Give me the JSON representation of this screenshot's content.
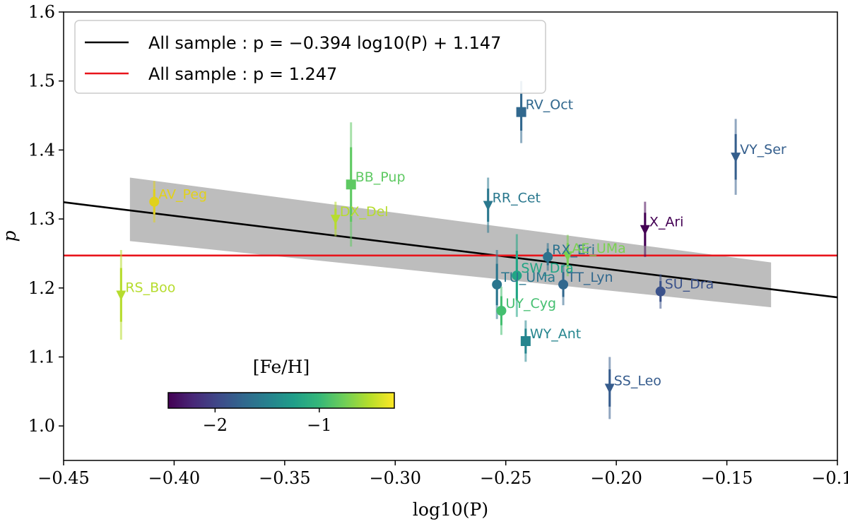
{
  "chart_data": {
    "type": "scatter",
    "xlabel": "log10(P)",
    "ylabel": "p",
    "xlim": [
      -0.45,
      -0.1
    ],
    "ylim": [
      0.95,
      1.6
    ],
    "xticks": [
      -0.45,
      -0.4,
      -0.35,
      -0.3,
      -0.25,
      -0.2,
      -0.15,
      -0.1
    ],
    "xtick_labels": [
      "−0.45",
      "−0.40",
      "−0.35",
      "−0.30",
      "−0.25",
      "−0.20",
      "−0.15",
      "−0.10"
    ],
    "yticks": [
      1.0,
      1.1,
      1.2,
      1.3,
      1.4,
      1.5,
      1.6
    ],
    "ytick_labels": [
      "1.0",
      "1.1",
      "1.2",
      "1.3",
      "1.4",
      "1.5",
      "1.6"
    ],
    "grid": false,
    "legend": {
      "placement": "top-left",
      "entries": [
        {
          "label": "All sample : p = −0.394 log10(P) + 1.147",
          "color": "#000000"
        },
        {
          "label": "All sample : p = 1.247",
          "color": "#e8141b"
        }
      ]
    },
    "fits": [
      {
        "type": "linear",
        "slope": -0.394,
        "intercept": 1.147,
        "color": "#000000",
        "x_range": [
          -0.45,
          -0.1
        ]
      },
      {
        "type": "constant",
        "value": 1.247,
        "color": "#e8141b",
        "x_range": [
          -0.45,
          -0.1
        ]
      }
    ],
    "confidence_band": {
      "x": [
        -0.42,
        -0.13
      ],
      "upper": [
        1.36,
        1.237
      ],
      "lower": [
        1.268,
        1.172
      ],
      "color": "#bdbdbd"
    },
    "colorbar": {
      "label": "[Fe/H]",
      "range": [
        -2.45,
        -0.28
      ],
      "ticks": [
        -2,
        -1
      ],
      "tick_labels": [
        "−2",
        "−1"
      ],
      "colormap": "viridis",
      "placement": "bottom-left"
    },
    "points": [
      {
        "name": "AV_Peg",
        "x": -0.409,
        "y": 1.325,
        "err": 0.03,
        "marker": "circle",
        "feh": -0.3,
        "color": "#e1d11c"
      },
      {
        "name": "DX_Del",
        "x": -0.327,
        "y": 1.3,
        "err": 0.025,
        "marker": "triangle-down",
        "feh": -0.55,
        "color": "#b6dc2e"
      },
      {
        "name": "BB_Pup",
        "x": -0.32,
        "y": 1.35,
        "err": 0.09,
        "marker": "square",
        "feh": -0.85,
        "color": "#5ec962"
      },
      {
        "name": "RS_Boo",
        "x": -0.424,
        "y": 1.19,
        "err": 0.065,
        "marker": "triangle-down",
        "feh": -0.5,
        "color": "#b6dc2e"
      },
      {
        "name": "RR_Cet",
        "x": -0.258,
        "y": 1.32,
        "err": 0.04,
        "marker": "triangle-down",
        "feh": -1.5,
        "color": "#2a788e"
      },
      {
        "name": "RV_Oct",
        "x": -0.243,
        "y": 1.455,
        "err": 0.045,
        "marker": "square",
        "feh": -1.7,
        "color": "#31688e"
      },
      {
        "name": "VY_Ser",
        "x": -0.146,
        "y": 1.39,
        "err": 0.055,
        "marker": "triangle-down",
        "feh": -1.8,
        "color": "#355f8d"
      },
      {
        "name": "X_Ari",
        "x": -0.187,
        "y": 1.285,
        "err": 0.04,
        "marker": "triangle-down",
        "feh": -2.4,
        "color": "#440154"
      },
      {
        "name": "RX_Eri",
        "x": -0.231,
        "y": 1.245,
        "err": 0.02,
        "marker": "circle",
        "feh": -1.5,
        "color": "#2c728e"
      },
      {
        "name": "AE_UMa",
        "x": -0.222,
        "y": 1.247,
        "err": 0.03,
        "marker": "triangle-down",
        "feh": -0.7,
        "color": "#7ad151"
      },
      {
        "name": "SW_Dra",
        "x": -0.245,
        "y": 1.218,
        "err": 0.06,
        "marker": "circle",
        "feh": -1.1,
        "color": "#21a585"
      },
      {
        "name": "TU_UMa",
        "x": -0.254,
        "y": 1.205,
        "err": 0.05,
        "marker": "circle",
        "feh": -1.5,
        "color": "#2a768e"
      },
      {
        "name": "TT_Lyn",
        "x": -0.224,
        "y": 1.205,
        "err": 0.03,
        "marker": "circle",
        "feh": -1.6,
        "color": "#31688e"
      },
      {
        "name": "UY_Cyg",
        "x": -0.252,
        "y": 1.167,
        "err": 0.035,
        "marker": "circle",
        "feh": -0.9,
        "color": "#44bf70"
      },
      {
        "name": "WY_Ant",
        "x": -0.241,
        "y": 1.123,
        "err": 0.03,
        "marker": "square",
        "feh": -1.4,
        "color": "#25858e"
      },
      {
        "name": "SU_Dra",
        "x": -0.18,
        "y": 1.195,
        "err": 0.025,
        "marker": "circle",
        "feh": -1.9,
        "color": "#3b528b"
      },
      {
        "name": "SS_Leo",
        "x": -0.203,
        "y": 1.055,
        "err": 0.045,
        "marker": "triangle-down",
        "feh": -1.8,
        "color": "#365c8d"
      }
    ]
  }
}
